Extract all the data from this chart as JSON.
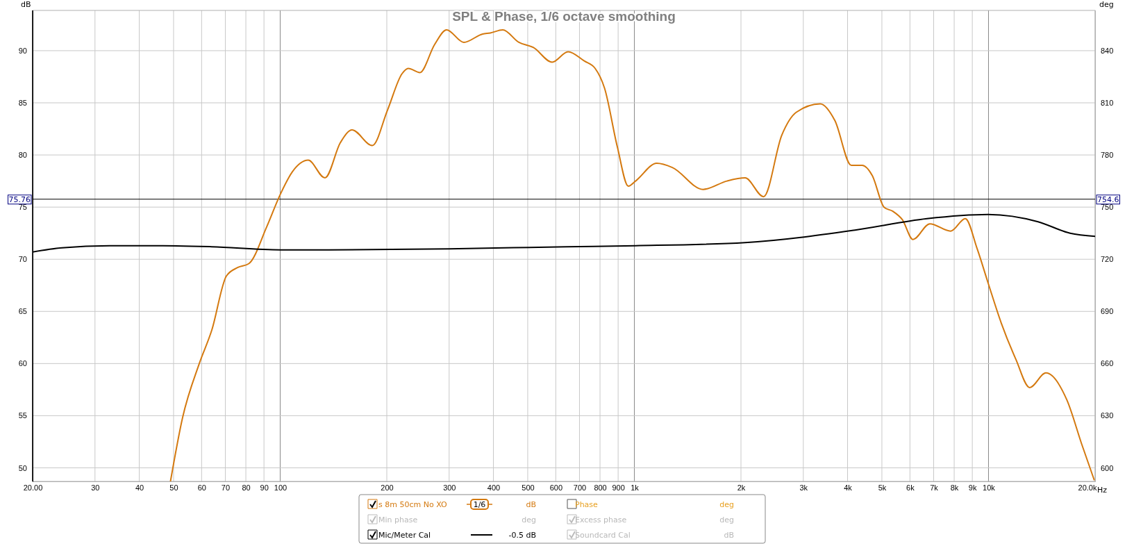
{
  "chart_data": {
    "type": "line",
    "title": "SPL & Phase, 1/6 octave smoothing",
    "ylabel": "dB",
    "y2label": "deg",
    "log": "x",
    "grid": true,
    "legend": "bottom",
    "marker": "none",
    "line_style": "solid",
    "xlim": [
      20,
      20000
    ],
    "xticks": [
      {
        "value": 20,
        "label": "20.00"
      },
      30,
      40,
      50,
      60,
      70,
      80,
      90,
      100,
      200,
      300,
      400,
      500,
      600,
      700,
      800,
      900,
      {
        "value": 1000,
        "label": "1k"
      },
      {
        "value": 2000,
        "label": "2k"
      },
      {
        "value": 3000,
        "label": "3k"
      },
      {
        "value": 4000,
        "label": "4k"
      },
      {
        "value": 5000,
        "label": "5k"
      },
      {
        "value": 6000,
        "label": "6k"
      },
      {
        "value": 7000,
        "label": "7k"
      },
      {
        "value": 8000,
        "label": "8k"
      },
      {
        "value": 9000,
        "label": "9k"
      },
      {
        "value": 10000,
        "label": "10k"
      },
      {
        "value": 20000,
        "label": "20.0k"
      }
    ],
    "xlabel": "Hz",
    "ylim": [
      48.7,
      93.86
    ],
    "yticks": [
      50,
      55,
      60,
      65,
      70,
      75,
      80,
      85,
      90
    ],
    "y2lim": [
      592.2,
      863.2
    ],
    "y2ticks": [
      600,
      630,
      660,
      690,
      720,
      750,
      780,
      810,
      840
    ],
    "ref_lines": [
      {
        "axis": "y",
        "value": 75.76,
        "label": "75.76",
        "color": "#000000"
      }
    ],
    "series": [
      {
        "name": "s 8m 50cm No XO",
        "color": "#d4790f",
        "x": [
          49,
          53,
          59.1,
          64.1,
          70.5,
          75.8,
          81.7,
          91.6,
          100,
          108.3,
          120,
          133.8,
          148,
          159.6,
          182,
          200.9,
          220.9,
          230,
          248,
          273,
          295,
          330,
          373,
          392,
          425,
          472,
          519,
          586,
          650,
          723,
          775,
          824,
          895,
          962,
          1008,
          1157,
          1280,
          1564,
          1825,
          2055,
          2317,
          2608,
          2868,
          3349,
          3683,
          4100,
          4400,
          4700,
          5070,
          5370,
          5710,
          6120,
          6830,
          7820,
          8600,
          9290,
          9980,
          10860,
          11950,
          13070,
          14520,
          16650,
          18320,
          19900
        ],
        "values": [
          48.7,
          54.8,
          60.0,
          63.2,
          68.4,
          69.2,
          69.6,
          73.1,
          76.2,
          78.4,
          79.5,
          77.8,
          81.2,
          82.4,
          80.9,
          84.3,
          87.8,
          88.3,
          87.9,
          90.6,
          92.0,
          90.8,
          91.6,
          91.7,
          92.0,
          90.8,
          90.3,
          88.9,
          89.9,
          89.0,
          88.3,
          86.4,
          80.8,
          77.0,
          77.5,
          79.2,
          78.8,
          76.7,
          77.5,
          77.8,
          76.0,
          81.9,
          84.1,
          84.9,
          83.3,
          79.0,
          79.0,
          78.0,
          75.0,
          74.6,
          73.8,
          71.9,
          73.4,
          72.7,
          73.9,
          71.0,
          67.7,
          63.9,
          60.4,
          57.7,
          59.1,
          56.5,
          52.3,
          48.8
        ]
      },
      {
        "name": "Mic/Meter Cal",
        "color": "#000000",
        "x": [
          20,
          24.2,
          33,
          46.6,
          64,
          100,
          137,
          300,
          644,
          1008,
          2055,
          4200,
          6700,
          9980,
          13800,
          17000,
          20000
        ],
        "values": [
          70.7,
          71.1,
          71.3,
          71.3,
          71.2,
          70.9,
          70.9,
          71.0,
          71.2,
          71.3,
          71.6,
          72.8,
          73.9,
          74.3,
          73.6,
          72.5,
          72.2
        ]
      }
    ],
    "annotations": [
      "754.6",
      "1/6",
      "dB",
      "Phase",
      "deg",
      "Min phase",
      "deg",
      "Excess phase",
      "deg",
      "-0.5 dB",
      "Soundcard Cal",
      "dB"
    ]
  }
}
